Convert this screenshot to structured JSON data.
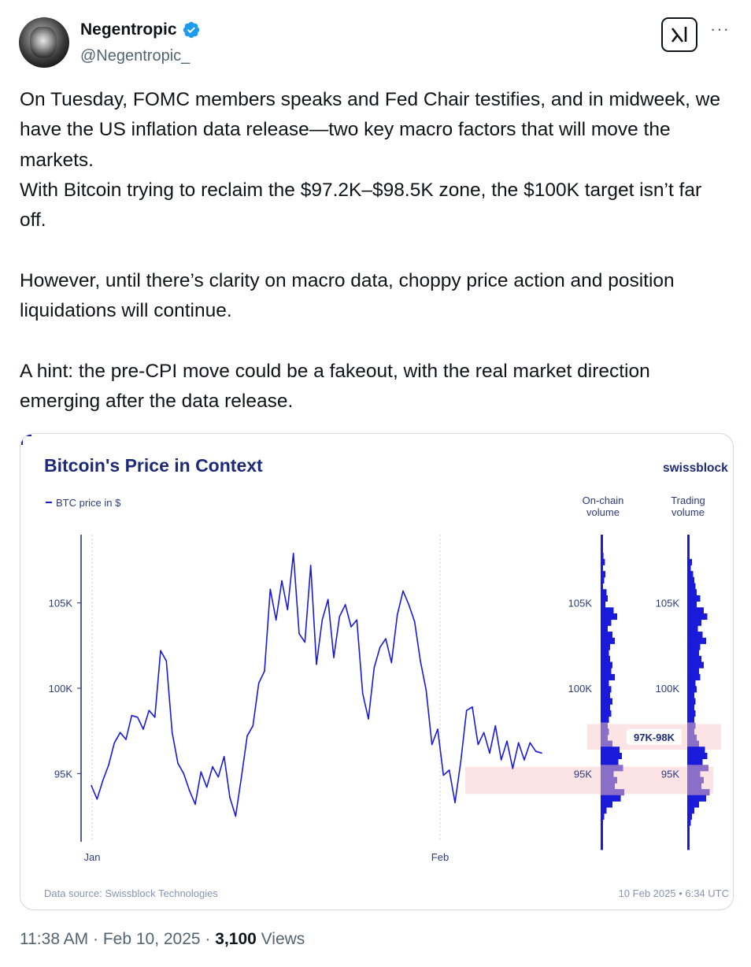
{
  "author": {
    "display_name": "Negentropic",
    "handle": "@Negentropic_",
    "verified": true,
    "accent": "#1d9bf0"
  },
  "actions": {
    "grok_icon": "grok-icon",
    "more_label": "···"
  },
  "tweet": {
    "text": "On Tuesday, FOMC members speaks and Fed Chair testifies, and in midweek, we have the US inflation data release—two key macro factors that will move the markets.\nWith Bitcoin trying to reclaim the $97.2K–$98.5K zone, the $100K target isn’t far off.\n\nHowever, until there’s clarity on macro data, choppy price action and position liquidations will continue.\n\nA hint: the pre-CPI move could be a fakeout, with the real market direction emerging after the data release."
  },
  "chart_data": {
    "type": "line",
    "title": "Bitcoin's Price in Context",
    "brand": "swissblock",
    "legend": "BTC price in $",
    "y_ticks": [
      "105K",
      "100K",
      "95K"
    ],
    "x_ticks": [
      "Jan",
      "Feb"
    ],
    "ylim": [
      91000,
      109000
    ],
    "onchain_label_1": "On-chain",
    "onchain_label_2": "volume",
    "trading_label_1": "Trading",
    "trading_label_2": "volume",
    "zone_label": "97K-98K",
    "zone_range": [
      96400,
      97900
    ],
    "support_zone_range": [
      93800,
      95400
    ],
    "source": "Data source: Swissblock Technologies",
    "timestamp": "10 Feb 2025 • 6:34 UTC",
    "colors": {
      "line": "#1a1adb",
      "title": "#1d2a7a",
      "zone": "#fbe3e6",
      "zone_dark": "#8a6fc9"
    },
    "btc_price": [
      94300,
      93500,
      94600,
      95500,
      96800,
      97400,
      97000,
      98400,
      98300,
      97600,
      98700,
      98300,
      102200,
      101600,
      97400,
      95600,
      95000,
      94000,
      93200,
      95100,
      94200,
      95400,
      94800,
      96000,
      93600,
      92500,
      94800,
      97200,
      97800,
      100300,
      101000,
      105800,
      104000,
      106300,
      104600,
      107900,
      103200,
      102700,
      107200,
      101400,
      104000,
      105200,
      101800,
      104200,
      104900,
      103600,
      104000,
      99700,
      98200,
      101200,
      102400,
      102900,
      101500,
      104300,
      105700,
      104900,
      103900,
      101600,
      99900,
      96700,
      97600,
      94900,
      95200,
      93300,
      95700,
      98700,
      98900,
      96700,
      97400,
      96200,
      97800,
      95800,
      96900,
      95300,
      96800,
      95800,
      96800,
      96300,
      96200
    ],
    "onchain_volume": [
      0.05,
      0.05,
      0.08,
      0.12,
      0.18,
      0.1,
      0.2,
      0.15,
      0.1,
      0.25,
      0.3,
      0.2,
      0.55,
      0.7,
      0.45,
      0.3,
      0.5,
      0.6,
      0.4,
      0.35,
      0.4,
      0.5,
      0.45,
      0.6,
      0.35,
      0.45,
      0.4,
      0.5,
      0.4,
      0.45,
      0.35,
      0.3,
      0.35,
      0.3,
      0.5,
      0.8,
      0.9,
      0.75,
      0.95,
      0.55,
      0.7,
      0.6,
      1.0,
      0.85,
      0.5,
      0.25,
      0.15,
      0.1,
      0.1,
      0.08,
      0.05,
      0.04
    ],
    "trading_volume": [
      0.05,
      0.08,
      0.1,
      0.08,
      0.2,
      0.15,
      0.25,
      0.3,
      0.35,
      0.4,
      0.55,
      0.4,
      0.7,
      0.85,
      0.6,
      0.45,
      0.65,
      0.8,
      0.55,
      0.5,
      0.6,
      0.7,
      0.5,
      0.55,
      0.35,
      0.4,
      0.3,
      0.35,
      0.3,
      0.35,
      0.3,
      0.35,
      0.3,
      0.4,
      0.5,
      0.75,
      0.85,
      0.65,
      0.9,
      0.55,
      0.7,
      0.6,
      0.95,
      0.8,
      0.5,
      0.3,
      0.2,
      0.15,
      0.1,
      0.08,
      0.05,
      0.04
    ]
  },
  "meta": {
    "time_date": "11:38 AM · Feb 10, 2025 · ",
    "views_count": "3,100",
    "views_label": " Views"
  }
}
